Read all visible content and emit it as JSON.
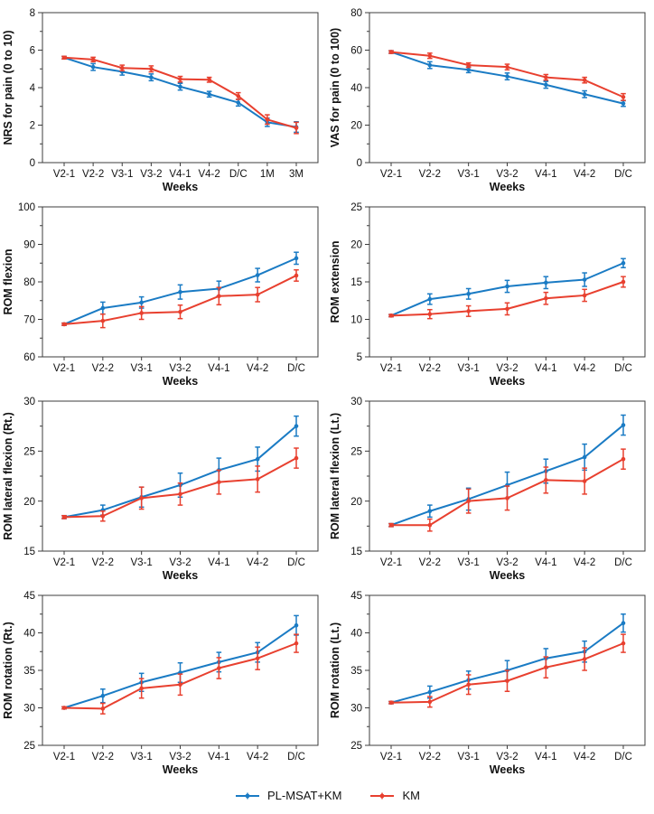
{
  "figure": {
    "background": "#ffffff",
    "xlabel_all": "Weeks"
  },
  "colors": {
    "series1": "#1a7bc4",
    "series2": "#e8402f",
    "axis": "#3c3c3c",
    "text": "#111111"
  },
  "legend": {
    "position": "bottom-center",
    "items": [
      {
        "label": "PL-MSAT+KM",
        "color": "#1a7bc4",
        "marker": "line-dot-errorbar"
      },
      {
        "label": "KM",
        "color": "#e8402f",
        "marker": "line-dot-errorbar"
      }
    ]
  },
  "chart_data": [
    {
      "type": "line",
      "ylabel": "NRS for pain (0 to 10)",
      "xlabel": "Weeks",
      "categories": [
        "V2-1",
        "V2-2",
        "V3-1",
        "V3-2",
        "V4-1",
        "V4-2",
        "D/C",
        "1M",
        "3M"
      ],
      "ylim": [
        0,
        8
      ],
      "ytick_step": 2,
      "yminor_step": 1,
      "grid": false,
      "boxed": true,
      "series": [
        {
          "name": "PL-MSAT+KM",
          "color": "#1a7bc4",
          "values": [
            5.6,
            5.1,
            4.85,
            4.55,
            4.05,
            3.65,
            3.2,
            2.15,
            1.9
          ],
          "errors": [
            0.07,
            0.18,
            0.18,
            0.18,
            0.18,
            0.15,
            0.18,
            0.22,
            0.28
          ]
        },
        {
          "name": "KM",
          "color": "#e8402f",
          "values": [
            5.6,
            5.5,
            5.05,
            5.0,
            4.45,
            4.42,
            3.55,
            2.3,
            1.85
          ],
          "errors": [
            0.07,
            0.12,
            0.15,
            0.16,
            0.15,
            0.13,
            0.18,
            0.25,
            0.3
          ]
        }
      ]
    },
    {
      "type": "line",
      "ylabel": "VAS for pain (0 to 100)",
      "xlabel": "Weeks",
      "categories": [
        "V2-1",
        "V2-2",
        "V3-1",
        "V3-2",
        "V4-1",
        "V4-2",
        "D/C"
      ],
      "ylim": [
        0,
        80
      ],
      "ytick_step": 20,
      "yminor_step": 10,
      "grid": false,
      "boxed": true,
      "series": [
        {
          "name": "PL-MSAT+KM",
          "color": "#1a7bc4",
          "values": [
            59,
            52,
            49.5,
            46,
            41.5,
            36.5,
            31.5
          ],
          "errors": [
            0.7,
            1.8,
            1.5,
            1.8,
            1.8,
            1.8,
            1.5
          ]
        },
        {
          "name": "KM",
          "color": "#e8402f",
          "values": [
            59,
            57,
            52,
            51,
            45.5,
            44,
            35
          ],
          "errors": [
            0.7,
            1.4,
            1.2,
            1.5,
            1.5,
            1.5,
            1.8
          ]
        }
      ]
    },
    {
      "type": "line",
      "ylabel": "ROM flexion",
      "xlabel": "Weeks",
      "categories": [
        "V2-1",
        "V2-2",
        "V3-1",
        "V3-2",
        "V4-1",
        "V4-2",
        "D/C"
      ],
      "ylim": [
        60,
        100
      ],
      "ytick_step": 10,
      "yminor_step": 5,
      "grid": false,
      "boxed": true,
      "series": [
        {
          "name": "PL-MSAT+KM",
          "color": "#1a7bc4",
          "values": [
            68.7,
            73.0,
            74.5,
            77.3,
            78.2,
            81.8,
            86.3
          ],
          "errors": [
            0.3,
            1.6,
            1.5,
            1.9,
            2.0,
            1.8,
            1.6
          ]
        },
        {
          "name": "KM",
          "color": "#e8402f",
          "values": [
            68.7,
            69.6,
            71.7,
            72.0,
            76.2,
            76.6,
            81.7
          ],
          "errors": [
            0.3,
            1.8,
            1.7,
            1.8,
            2.3,
            1.9,
            1.5
          ]
        }
      ]
    },
    {
      "type": "line",
      "ylabel": "ROM extension",
      "xlabel": "Weeks",
      "categories": [
        "V2-1",
        "V2-2",
        "V3-1",
        "V3-2",
        "V4-1",
        "V4-2",
        "D/C"
      ],
      "ylim": [
        5,
        25
      ],
      "ytick_step": 5,
      "yminor_step": 2.5,
      "grid": false,
      "boxed": true,
      "series": [
        {
          "name": "PL-MSAT+KM",
          "color": "#1a7bc4",
          "values": [
            10.5,
            12.7,
            13.4,
            14.4,
            14.9,
            15.3,
            17.5
          ],
          "errors": [
            0.15,
            0.7,
            0.7,
            0.8,
            0.8,
            0.9,
            0.6
          ]
        },
        {
          "name": "KM",
          "color": "#e8402f",
          "values": [
            10.5,
            10.7,
            11.1,
            11.4,
            12.8,
            13.2,
            15.0
          ],
          "errors": [
            0.15,
            0.6,
            0.7,
            0.8,
            0.8,
            0.8,
            0.7
          ]
        }
      ]
    },
    {
      "type": "line",
      "ylabel": "ROM lateral flexion (Rt.)",
      "xlabel": "Weeks",
      "categories": [
        "V2-1",
        "V2-2",
        "V3-1",
        "V3-2",
        "V4-1",
        "V4-2",
        "D/C"
      ],
      "ylim": [
        15,
        30
      ],
      "ytick_step": 5,
      "yminor_step": 2.5,
      "grid": false,
      "boxed": true,
      "series": [
        {
          "name": "PL-MSAT+KM",
          "color": "#1a7bc4",
          "values": [
            18.4,
            19.1,
            20.4,
            21.6,
            23.1,
            24.2,
            27.5
          ],
          "errors": [
            0.15,
            0.5,
            1.0,
            1.2,
            1.2,
            1.2,
            1.0
          ]
        },
        {
          "name": "KM",
          "color": "#e8402f",
          "values": [
            18.4,
            18.5,
            20.3,
            20.7,
            21.9,
            22.2,
            24.3
          ],
          "errors": [
            0.15,
            0.5,
            1.1,
            1.1,
            1.2,
            1.3,
            1.0
          ]
        }
      ]
    },
    {
      "type": "line",
      "ylabel": "ROM lateral flexion (Lt.)",
      "xlabel": "Weeks",
      "categories": [
        "V2-1",
        "V2-2",
        "V3-1",
        "V3-2",
        "V4-1",
        "V4-2",
        "D/C"
      ],
      "ylim": [
        15,
        30
      ],
      "ytick_step": 5,
      "yminor_step": 2.5,
      "grid": false,
      "boxed": true,
      "series": [
        {
          "name": "PL-MSAT+KM",
          "color": "#1a7bc4",
          "values": [
            17.6,
            19.0,
            20.2,
            21.6,
            23.0,
            24.4,
            27.6
          ],
          "errors": [
            0.15,
            0.6,
            1.1,
            1.3,
            1.2,
            1.3,
            1.0
          ]
        },
        {
          "name": "KM",
          "color": "#e8402f",
          "values": [
            17.6,
            17.6,
            20.0,
            20.3,
            22.1,
            22.0,
            24.2
          ],
          "errors": [
            0.15,
            0.6,
            1.2,
            1.2,
            1.3,
            1.3,
            1.0
          ]
        }
      ]
    },
    {
      "type": "line",
      "ylabel": "ROM rotation (Rt.)",
      "xlabel": "Weeks",
      "categories": [
        "V2-1",
        "V2-2",
        "V3-1",
        "V3-2",
        "V4-1",
        "V4-2",
        "D/C"
      ],
      "ylim": [
        25,
        45
      ],
      "ytick_step": 5,
      "yminor_step": 2.5,
      "grid": false,
      "boxed": true,
      "series": [
        {
          "name": "PL-MSAT+KM",
          "color": "#1a7bc4",
          "values": [
            30.0,
            31.6,
            33.4,
            34.7,
            36.1,
            37.4,
            41.0
          ],
          "errors": [
            0.15,
            0.9,
            1.2,
            1.3,
            1.3,
            1.3,
            1.3
          ]
        },
        {
          "name": "KM",
          "color": "#e8402f",
          "values": [
            30.0,
            29.9,
            32.6,
            33.1,
            35.3,
            36.6,
            38.6
          ],
          "errors": [
            0.15,
            0.7,
            1.3,
            1.4,
            1.4,
            1.5,
            1.2
          ]
        }
      ]
    },
    {
      "type": "line",
      "ylabel": "ROM rotation (Lt.)",
      "xlabel": "Weeks",
      "categories": [
        "V2-1",
        "V2-2",
        "V3-1",
        "V3-2",
        "V4-1",
        "V4-2",
        "D/C"
      ],
      "ylim": [
        25,
        45
      ],
      "ytick_step": 5,
      "yminor_step": 2.5,
      "grid": false,
      "boxed": true,
      "series": [
        {
          "name": "PL-MSAT+KM",
          "color": "#1a7bc4",
          "values": [
            30.7,
            32.1,
            33.7,
            35.0,
            36.6,
            37.5,
            41.3
          ],
          "errors": [
            0.15,
            0.8,
            1.2,
            1.3,
            1.3,
            1.4,
            1.2
          ]
        },
        {
          "name": "KM",
          "color": "#e8402f",
          "values": [
            30.7,
            30.8,
            33.1,
            33.6,
            35.4,
            36.5,
            38.6
          ],
          "errors": [
            0.15,
            0.7,
            1.3,
            1.4,
            1.4,
            1.5,
            1.2
          ]
        }
      ]
    }
  ]
}
